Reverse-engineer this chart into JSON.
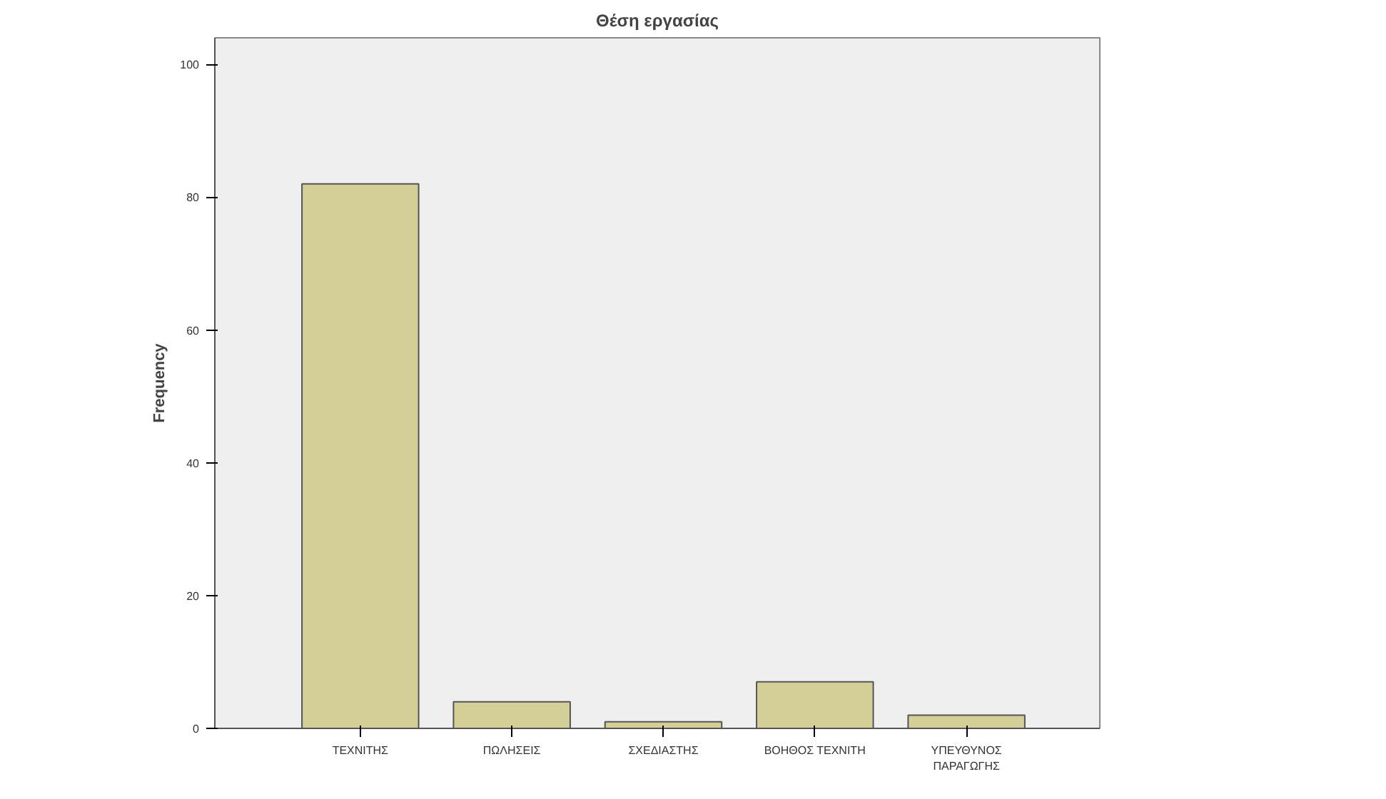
{
  "chart_data": {
    "type": "bar",
    "title": "Θέση εργασίας",
    "ylabel": "Frequency",
    "categories": [
      "ΤΕΧΝΙΤΗΣ",
      "ΠΩΛΗΣΕΙΣ",
      "ΣΧΕΔΙΑΣΤΗΣ",
      "ΒΟΗΘΟΣ ΤΕΧΝΙΤΗ",
      "ΥΠΕΥΘΥΝΟΣ\nΠΑΡΑΓΩΓΗΣ"
    ],
    "values": [
      82,
      4,
      1,
      7,
      2
    ],
    "color": "#d4cf96",
    "ylim": [
      0,
      104
    ],
    "yticks": [
      0,
      20,
      40,
      60,
      80,
      100
    ],
    "grid": false
  }
}
